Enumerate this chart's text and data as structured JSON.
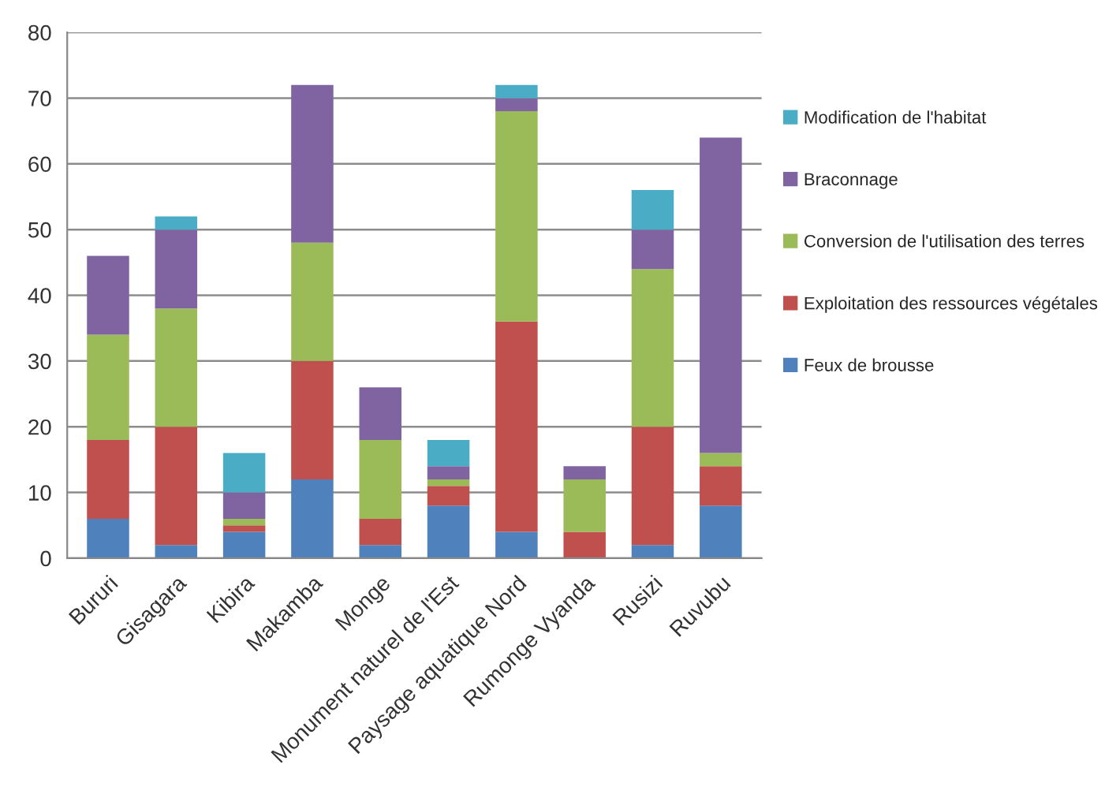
{
  "chart_data": {
    "type": "bar",
    "stacked": true,
    "categories": [
      "Bururi",
      "Gisagara",
      "Kibira",
      "Makamba",
      "Monge",
      "Monument naturel de l'Est",
      "Paysage aquatique Nord",
      "Rumonge Vyanda",
      "Rusizi",
      "Ruvubu"
    ],
    "series": [
      {
        "name": "Feux de brousse",
        "color": "#4f81bd",
        "values": [
          6,
          2,
          4,
          12,
          2,
          8,
          4,
          0,
          2,
          8
        ]
      },
      {
        "name": "Exploitation des ressources végétales",
        "color": "#c0504d",
        "values": [
          12,
          18,
          1,
          18,
          4,
          3,
          32,
          4,
          18,
          6
        ]
      },
      {
        "name": "Conversion de l'utilisation des terres",
        "color": "#9bbb59",
        "values": [
          16,
          18,
          1,
          18,
          12,
          1,
          32,
          8,
          24,
          2
        ]
      },
      {
        "name": "Braconnage",
        "color": "#8064a2",
        "values": [
          12,
          12,
          4,
          24,
          8,
          2,
          2,
          2,
          6,
          48
        ]
      },
      {
        "name": "Modification de l'habitat",
        "color": "#4bacc6",
        "values": [
          0,
          2,
          6,
          0,
          0,
          4,
          2,
          0,
          6,
          0
        ]
      }
    ],
    "ylim": [
      0,
      80
    ],
    "yticks": [
      0,
      10,
      20,
      30,
      40,
      50,
      60,
      70,
      80
    ],
    "grid": "y",
    "legend": "right"
  }
}
